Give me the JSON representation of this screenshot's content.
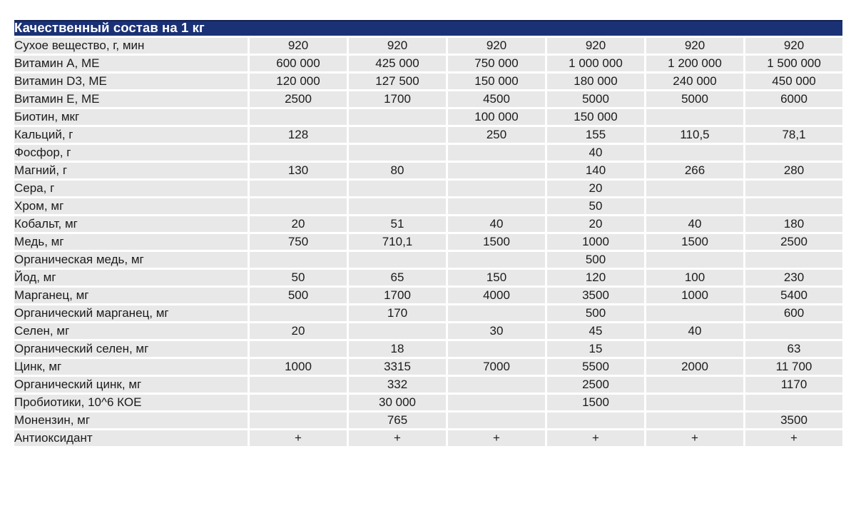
{
  "table": {
    "title": "Качественный состав на 1 кг",
    "colors": {
      "header_bg": "#1b3176",
      "header_text": "#ffffff",
      "row_bg": "#e8e8e8",
      "text": "#1b1b1b",
      "page_bg": "#ffffff"
    },
    "columns_count": 6,
    "rows": [
      {
        "label": "Сухое вещество, г, мин",
        "values": [
          "920",
          "920",
          "920",
          "920",
          "920",
          "920"
        ]
      },
      {
        "label": "Витамин А, МЕ",
        "values": [
          "600 000",
          "425 000",
          "750 000",
          "1 000 000",
          "1 200 000",
          "1 500 000"
        ]
      },
      {
        "label": "Витамин D3, МЕ",
        "values": [
          "120 000",
          "127 500",
          "150 000",
          "180 000",
          "240 000",
          "450 000"
        ]
      },
      {
        "label": "Витамин Е, МЕ",
        "values": [
          "2500",
          "1700",
          "4500",
          "5000",
          "5000",
          "6000"
        ]
      },
      {
        "label": "Биотин, мкг",
        "values": [
          "",
          "",
          "100 000",
          "150 000",
          "",
          ""
        ]
      },
      {
        "label": "Кальций, г",
        "values": [
          "128",
          "",
          "250",
          "155",
          "110,5",
          "78,1"
        ]
      },
      {
        "label": "Фосфор, г",
        "values": [
          "",
          "",
          "",
          "40",
          "",
          ""
        ]
      },
      {
        "label": "Магний, г",
        "values": [
          "130",
          "80",
          "",
          "140",
          "266",
          "280"
        ]
      },
      {
        "label": "Сера, г",
        "values": [
          "",
          "",
          "",
          "20",
          "",
          ""
        ]
      },
      {
        "label": "Хром, мг",
        "values": [
          "",
          "",
          "",
          "50",
          "",
          ""
        ]
      },
      {
        "label": "Кобальт, мг",
        "values": [
          "20",
          "51",
          "40",
          "20",
          "40",
          "180"
        ]
      },
      {
        "label": "Медь, мг",
        "values": [
          "750",
          "710,1",
          "1500",
          "1000",
          "1500",
          "2500"
        ]
      },
      {
        "label": "Органическая медь, мг",
        "values": [
          "",
          "",
          "",
          "500",
          "",
          ""
        ]
      },
      {
        "label": "Йод, мг",
        "values": [
          "50",
          "65",
          "150",
          "120",
          "100",
          "230"
        ]
      },
      {
        "label": "Марганец, мг",
        "values": [
          "500",
          "1700",
          "4000",
          "3500",
          "1000",
          "5400"
        ]
      },
      {
        "label": "Органический марганец, мг",
        "values": [
          "",
          "170",
          "",
          "500",
          "",
          "600"
        ]
      },
      {
        "label": "Селен, мг",
        "values": [
          "20",
          "",
          "30",
          "45",
          "40",
          ""
        ]
      },
      {
        "label": "Органический селен, мг",
        "values": [
          "",
          "18",
          "",
          "15",
          "",
          "63"
        ]
      },
      {
        "label": "Цинк, мг",
        "values": [
          "1000",
          "3315",
          "7000",
          "5500",
          "2000",
          "11 700"
        ]
      },
      {
        "label": "Органический цинк, мг",
        "values": [
          "",
          "332",
          "",
          "2500",
          "",
          "1170"
        ]
      },
      {
        "label": "Пробиотики, 10^6 КОЕ",
        "values": [
          "",
          "30 000",
          "",
          "1500",
          "",
          ""
        ]
      },
      {
        "label": "Монензин, мг",
        "values": [
          "",
          "765",
          "",
          "",
          "",
          "3500"
        ]
      },
      {
        "label": "Антиоксидант",
        "values": [
          "+",
          "+",
          "+",
          "+",
          "+",
          "+"
        ]
      }
    ]
  }
}
